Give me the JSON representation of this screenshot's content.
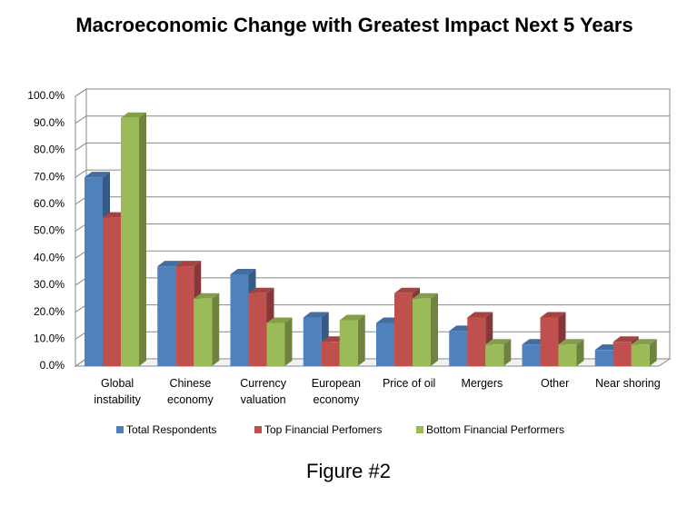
{
  "chart_data": {
    "type": "bar3d",
    "title": "Macroeconomic Change with Greatest Impact Next 5 Years",
    "caption": "Figure #2",
    "categories": [
      "Global instability",
      "Chinese economy",
      "Currency valuation",
      "European economy",
      "Price of oil",
      "Mergers",
      "Other",
      "Near shoring"
    ],
    "series": [
      {
        "name": "Total Respondents",
        "color": "#4f81bd",
        "values": [
          70,
          37,
          34,
          18,
          16,
          13,
          8,
          6
        ]
      },
      {
        "name": "Top Financial Perfomers",
        "color": "#c0504d",
        "values": [
          55,
          37,
          27,
          9,
          27,
          18,
          18,
          9
        ]
      },
      {
        "name": "Bottom Financial Performers",
        "color": "#9bbb59",
        "values": [
          92,
          25,
          16,
          17,
          25,
          8,
          8,
          8
        ]
      }
    ],
    "ylim": [
      0,
      100
    ],
    "yticks": [
      {
        "value": 0,
        "label": "0.0%"
      },
      {
        "value": 10,
        "label": "10.0%"
      },
      {
        "value": 20,
        "label": "20.0%"
      },
      {
        "value": 30,
        "label": "30.0%"
      },
      {
        "value": 40,
        "label": "40.0%"
      },
      {
        "value": 50,
        "label": "50.0%"
      },
      {
        "value": 60,
        "label": "60.0%"
      },
      {
        "value": 70,
        "label": "70.0%"
      },
      {
        "value": 80,
        "label": "80.0%"
      },
      {
        "value": 90,
        "label": "90.0%"
      },
      {
        "value": 100,
        "label": "100.0%"
      }
    ],
    "grid": true,
    "legend": "bottom"
  }
}
